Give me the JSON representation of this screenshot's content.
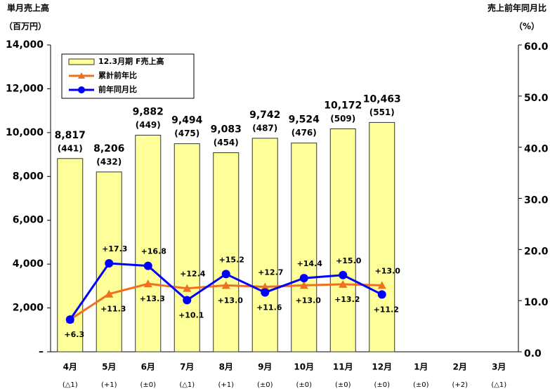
{
  "chart_data": {
    "type": "bar_line",
    "y_axis_title": [
      "単月売上高",
      "（百万円）"
    ],
    "y2_axis_title": [
      "売上前年同月比",
      "（%）"
    ],
    "categories": [
      "4月",
      "5月",
      "6月",
      "7月",
      "8月",
      "9月",
      "10月",
      "11月",
      "12月",
      "1月",
      "2月",
      "3月"
    ],
    "category_notes": [
      "(△1)",
      "(+1)",
      "(±0)",
      "(△1)",
      "(+1)",
      "(±0)",
      "(±0)",
      "(±0)",
      "(±0)",
      "(±0)",
      "(+2)",
      "(△1)"
    ],
    "series": [
      {
        "name": "12.3月期 F売上高",
        "kind": "bar",
        "color": "#ffff99",
        "values": [
          8817,
          8206,
          9882,
          9494,
          9083,
          9742,
          9524,
          10172,
          10463,
          null,
          null,
          null
        ],
        "value_labels": [
          "8,817",
          "8,206",
          "9,882",
          "9,494",
          "9,083",
          "9,742",
          "9,524",
          "10,172",
          "10,463",
          null,
          null,
          null
        ],
        "secondary_labels": [
          "(441)",
          "(432)",
          "(449)",
          "(475)",
          "(454)",
          "(487)",
          "(476)",
          "(509)",
          "(551)",
          null,
          null,
          null
        ]
      },
      {
        "name": "累計前年比",
        "kind": "line",
        "marker": "triangle",
        "axis": "y2",
        "color": "#f07022",
        "values": [
          6.3,
          11.3,
          13.3,
          12.4,
          13.0,
          12.7,
          13.0,
          13.2,
          13.0,
          null,
          null,
          null
        ],
        "value_labels": [
          "+6.3",
          "+11.3",
          "+13.3",
          "+12.4",
          "+13.0",
          "+12.7",
          "+13.0",
          "+13.2",
          "+13.0",
          null,
          null,
          null
        ]
      },
      {
        "name": "前年同月比",
        "kind": "line",
        "marker": "circle",
        "axis": "y2",
        "color": "#0000ff",
        "values": [
          6.3,
          17.3,
          16.8,
          10.1,
          15.2,
          11.6,
          14.4,
          15.0,
          11.2,
          null,
          null,
          null
        ],
        "value_labels": [
          null,
          "+17.3",
          "+16.8",
          "+10.1",
          "+15.2",
          "+11.6",
          "+14.4",
          "+15.0",
          "+11.2",
          null,
          null,
          null
        ]
      }
    ],
    "ylim": [
      0,
      14000
    ],
    "yticks": [
      {
        "value": 0,
        "label": "–"
      },
      {
        "value": 2000,
        "label": "2,000"
      },
      {
        "value": 4000,
        "label": "4,000"
      },
      {
        "value": 6000,
        "label": "6,000"
      },
      {
        "value": 8000,
        "label": "8,000"
      },
      {
        "value": 10000,
        "label": "10,000"
      },
      {
        "value": 12000,
        "label": "12,000"
      },
      {
        "value": 14000,
        "label": "14,000"
      }
    ],
    "y2lim": [
      0,
      60
    ],
    "y2ticks": [
      {
        "value": 0,
        "label": "0.0"
      },
      {
        "value": 10,
        "label": "10.0"
      },
      {
        "value": 20,
        "label": "20.0"
      },
      {
        "value": 30,
        "label": "30.0"
      },
      {
        "value": 40,
        "label": "40.0"
      },
      {
        "value": 50,
        "label": "50.0"
      },
      {
        "value": 60,
        "label": "60.0"
      }
    ],
    "grid": false,
    "legend": "upper left"
  }
}
